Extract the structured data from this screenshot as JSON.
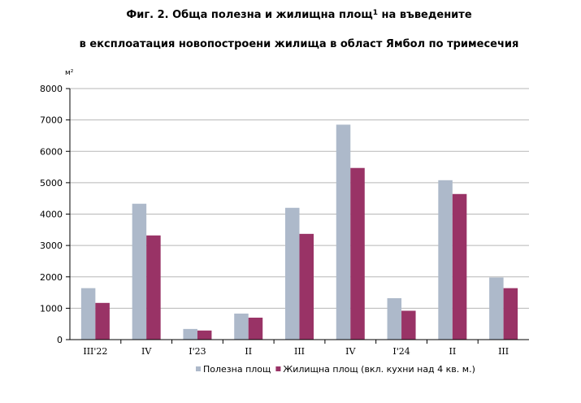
{
  "chart_data": {
    "type": "bar",
    "title_line1": "Фиг. 2. Обща полезна и жилищна площ",
    "title_sup": "1",
    "title_line1_end": " на въведените",
    "title_line2": "в експлоатация новопостроени жилища в област Ямбол по тримесечия",
    "ylabel": "м²",
    "ylim": [
      0,
      8000
    ],
    "yticks": [
      "0",
      "1000",
      "2000",
      "3000",
      "4000",
      "5000",
      "6000",
      "7000",
      "8000"
    ],
    "ytick_values": [
      0,
      1000,
      2000,
      3000,
      4000,
      5000,
      6000,
      7000,
      8000
    ],
    "grid": true,
    "legend_position": "bottom",
    "categories": [
      "III'22",
      "IV",
      "I'23",
      "II",
      "III",
      "IV",
      "I'24",
      "II",
      "III"
    ],
    "series": [
      {
        "name": "Полезна площ",
        "color": "#adb9ca",
        "values": [
          1640,
          4330,
          340,
          830,
          4200,
          6850,
          1320,
          5080,
          1980
        ]
      },
      {
        "name": "Жилищна площ (вкл. кухни над 4 кв. м.)",
        "color": "#993366",
        "values": [
          1170,
          3320,
          290,
          700,
          3370,
          5470,
          920,
          4640,
          1640
        ]
      }
    ]
  }
}
